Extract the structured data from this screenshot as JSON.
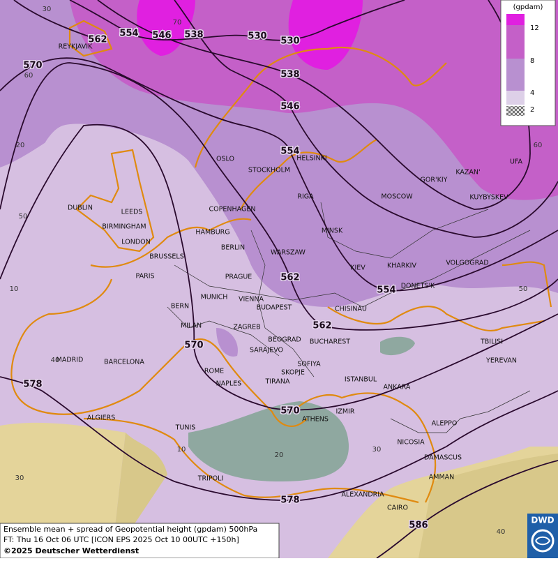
{
  "legend": {
    "title": "(gpdam)",
    "labels": [
      "12",
      "8",
      "4",
      "2"
    ]
  },
  "contour_labels": [
    "562",
    "554",
    "546",
    "538",
    "530",
    "530",
    "538",
    "546",
    "554",
    "570",
    "562",
    "562",
    "554",
    "570",
    "578",
    "570",
    "578",
    "586"
  ],
  "cities": [
    "REYKJAVIK",
    "OSLO",
    "STOCKHOLM",
    "HELSINKI",
    "DUBLIN",
    "LEEDS",
    "BIRMINGHAM",
    "LONDON",
    "COPENHAGEN",
    "HAMBURG",
    "RIGA",
    "MOSCOW",
    "GOR'KIY",
    "KAZAN'",
    "UFA",
    "KUYBYSKEV",
    "MINSK",
    "BERLIN",
    "WARSZAW",
    "BRUSSELS",
    "PARIS",
    "PRAGUE",
    "KIEV",
    "KHARKIV",
    "VOLGOGRAD",
    "DONETS'K",
    "MUNICH",
    "VIENNA",
    "BERN",
    "BUDAPEST",
    "CHISINAU",
    "MILAN",
    "ZAGREB",
    "BEOGRAD",
    "BUCHAREST",
    "TBILISI",
    "SARAJEVO",
    "MADRID",
    "BARCELONA",
    "SOFIYA",
    "YEREVAN",
    "ROME",
    "SKOPJE",
    "ISTANBUL",
    "ANKARA",
    "NAPLES",
    "TIRANA",
    "ALGIERS",
    "ATHENS",
    "IZMIR",
    "ALEPPO",
    "TUNIS",
    "NICOSIA",
    "DAMASCUS",
    "TRIPOLI",
    "AMMAN",
    "ALEXANDRIA",
    "CAIRO"
  ],
  "grid_labels": [
    "30",
    "70",
    "60",
    "20",
    "50",
    "10",
    "40",
    "30",
    "60",
    "50",
    "40",
    "10",
    "20",
    "30"
  ],
  "footer": {
    "line1": "Ensemble mean + spread of Geopotential height (gpdam) 500hPa",
    "line2": "FT: Thu 16 Oct 06 UTC [ICON EPS 2025 Oct 10 00UTC +150h]",
    "line3": "©2025 Deutscher Wetterdienst"
  },
  "logo": "DWD"
}
